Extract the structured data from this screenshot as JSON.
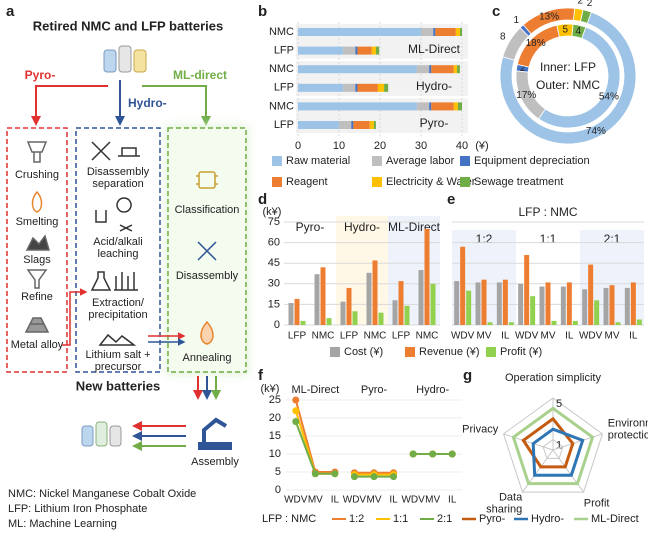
{
  "diagram": {
    "label": "a",
    "title": "Retired NMC and LFP batteries",
    "routes": [
      "Pyro-",
      "Hydro-",
      "ML-direct"
    ],
    "pyro_steps": [
      "Crushing",
      "Smelting",
      "Slags",
      "Refine",
      "Metal alloy"
    ],
    "hydro_steps": [
      [
        "Disassembly",
        "separation"
      ],
      [
        "Acid/alkali",
        "leaching"
      ],
      [
        "Extraction/",
        "precipitation"
      ],
      [
        "Lithium salt +",
        "precursor"
      ]
    ],
    "ml_steps": [
      "Classification",
      "Disassembly",
      "Annealing"
    ],
    "new_batteries": "New batteries",
    "assembly": "Assembly",
    "notes": [
      "NMC: Nickel Manganese Cobalt Oxide",
      "LFP: Lithium Iron Phosphate",
      "ML: Machine Learning"
    ]
  },
  "chart_data": [
    {
      "label": "b",
      "type": "bar",
      "orientation": "horizontal",
      "stacked": true,
      "categories": [
        "NMC",
        "LFP",
        "NMC",
        "LFP",
        "NMC",
        "LFP"
      ],
      "groups": [
        "ML-Direct",
        "Hydro-",
        "Pyro-"
      ],
      "xlabel": "(¥)",
      "xlim": [
        0,
        40
      ],
      "xticks": [
        0,
        10,
        20,
        30,
        40
      ],
      "grid": true,
      "series": [
        {
          "name": "Raw material",
          "color": "#9dc3e6",
          "values": [
            30,
            11,
            29,
            11,
            29,
            10
          ]
        },
        {
          "name": "Average labor",
          "color": "#bfbfbf",
          "values": [
            3,
            3,
            3,
            3,
            3,
            3
          ]
        },
        {
          "name": "Equipment depreciation",
          "color": "#4472c4",
          "values": [
            0.5,
            0.5,
            0.5,
            0.5,
            0.5,
            0.5
          ]
        },
        {
          "name": "Reagent",
          "color": "#ed7d31",
          "values": [
            5,
            3.5,
            5.5,
            5,
            5.5,
            4
          ]
        },
        {
          "name": "Electricity & Water",
          "color": "#ffc000",
          "values": [
            1,
            1,
            0.8,
            1.5,
            1,
            1
          ]
        },
        {
          "name": "Sewage treatment",
          "color": "#70ad47",
          "values": [
            0.5,
            0.8,
            0.7,
            1,
            1,
            0.5
          ]
        }
      ]
    },
    {
      "label": "c",
      "type": "donut",
      "inner_label": "Inner: LFP",
      "outer_label": "Outer: NMC",
      "colors": [
        "#9dc3e6",
        "#bfbfbf",
        "#4472c4",
        "#ed7d31",
        "#ffc000",
        "#70ad47"
      ],
      "series": [
        {
          "ring": "inner",
          "values": [
            54,
            17,
            2,
            18,
            5,
            4
          ],
          "value_labels": [
            "54%",
            "17%",
            "2",
            "18%",
            "5",
            "4"
          ]
        },
        {
          "ring": "outer",
          "values": [
            74,
            8,
            1,
            13,
            2,
            2
          ],
          "value_labels": [
            "74%",
            "8",
            "1",
            "13%",
            "2",
            "2"
          ]
        }
      ]
    },
    {
      "label": "d",
      "type": "bar",
      "ylabel": "(k¥)",
      "groups": [
        "Pyro-",
        "Hydro-",
        "ML-Direct"
      ],
      "group_colors": [
        "#ffffff",
        "#fff8e6",
        "#eef3fb"
      ],
      "categories": [
        "LFP",
        "NMC",
        "LFP",
        "NMC",
        "LFP",
        "NMC"
      ],
      "ylim": [
        0,
        75
      ],
      "yticks": [
        0,
        15,
        30,
        45,
        60,
        75
      ],
      "grid": true,
      "series": [
        {
          "name": "Cost (¥)",
          "color": "#a5a5a5",
          "values": [
            16,
            37,
            17,
            38,
            18,
            40
          ]
        },
        {
          "name": "Revenue (¥)",
          "color": "#ed7d31",
          "values": [
            19,
            42,
            27,
            47,
            32,
            70
          ]
        },
        {
          "name": "Profit (¥)",
          "color": "#92d050",
          "values": [
            3,
            5,
            10,
            9,
            14,
            30
          ]
        }
      ]
    },
    {
      "label": "e",
      "type": "bar",
      "title": "LFP : NMC",
      "groups": [
        "1:2",
        "1:1",
        "2:1"
      ],
      "group_colors": [
        "#eef3fb",
        "#ffffff",
        "#eef3fb"
      ],
      "categories": [
        "WDV",
        "MV",
        "IL",
        "WDV",
        "MV",
        "IL",
        "WDV",
        "MV",
        "IL"
      ],
      "ylim": [
        0,
        75
      ],
      "yticks": [
        0,
        15,
        30,
        45,
        60,
        75
      ],
      "grid": true,
      "series": [
        {
          "color": "#a5a5a5",
          "values": [
            32,
            31,
            31,
            30,
            28,
            28,
            26,
            27,
            27
          ]
        },
        {
          "color": "#ed7d31",
          "values": [
            57,
            33,
            33,
            51,
            31,
            31,
            44,
            29,
            31
          ]
        },
        {
          "color": "#92d050",
          "values": [
            25,
            2,
            2,
            21,
            3,
            3,
            18,
            2,
            4
          ]
        }
      ]
    },
    {
      "label": "f",
      "type": "line",
      "ylabel": "(k¥)",
      "legend_title": "LFP : NMC",
      "groups": [
        "ML-Direct",
        "Pyro-",
        "Hydro-"
      ],
      "categories": [
        "WDV",
        "MV",
        "IL",
        "WDV",
        "MV",
        "IL",
        "WDV",
        "MV",
        "IL"
      ],
      "ylim": [
        0,
        25
      ],
      "yticks": [
        0,
        5,
        10,
        15,
        20,
        25
      ],
      "grid": true,
      "series": [
        {
          "name": "1:2",
          "color": "#ed7d31",
          "values": [
            25,
            5,
            5,
            4.8,
            4.8,
            4.8,
            10,
            10,
            10
          ]
        },
        {
          "name": "1:1",
          "color": "#ffc000",
          "values": [
            22,
            4.5,
            4.5,
            4.3,
            4.3,
            4.3,
            10,
            10,
            10
          ]
        },
        {
          "name": "2:1",
          "color": "#70ad47",
          "values": [
            19,
            4.5,
            4.5,
            3.7,
            3.7,
            3.7,
            10,
            10,
            10
          ]
        }
      ]
    },
    {
      "label": "g",
      "type": "radar",
      "axes": [
        [
          "Operation simplicity"
        ],
        [
          "Environment",
          "protection"
        ],
        [
          "Profit"
        ],
        [
          "Data",
          "sharing"
        ],
        [
          "Privacy"
        ]
      ],
      "rlim": [
        0,
        5
      ],
      "rticks": [
        1,
        5
      ],
      "series": [
        {
          "name": "Pyro-",
          "color": "#c55a11",
          "values": [
            3,
            2,
            2,
            2,
            3
          ]
        },
        {
          "name": "Hydro-",
          "color": "#2e75b6",
          "values": [
            2,
            3,
            3,
            3,
            2
          ]
        },
        {
          "name": "ML-Direct",
          "color": "#a9d18e",
          "values": [
            4,
            4,
            4,
            4,
            4
          ]
        }
      ]
    }
  ]
}
